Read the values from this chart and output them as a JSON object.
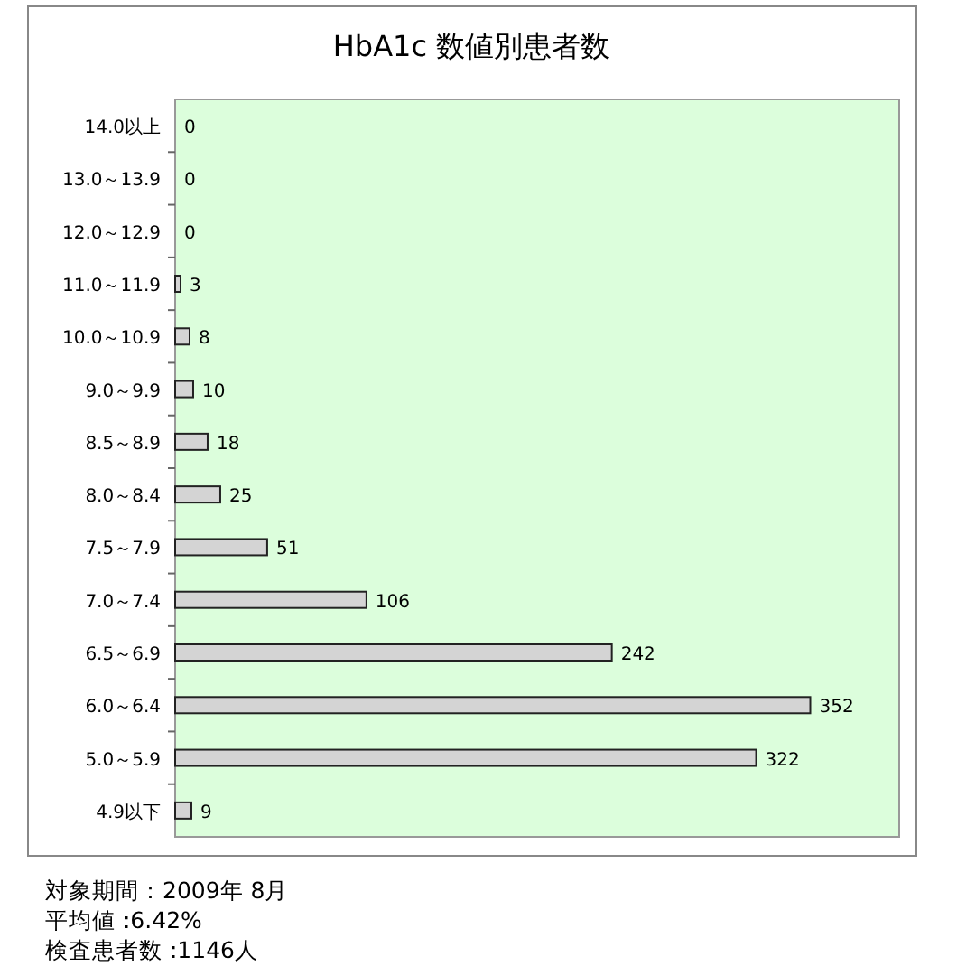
{
  "chart_data": {
    "type": "bar",
    "orientation": "horizontal",
    "title": "HbA1c 数値別患者数",
    "categories": [
      "14.0以上",
      "13.0～13.9",
      "12.0～12.9",
      "11.0～11.9",
      "10.0～10.9",
      "9.0～9.9",
      "8.5～8.9",
      "8.0～8.4",
      "7.5～7.9",
      "7.0～7.4",
      "6.5～6.9",
      "6.0～6.4",
      "5.0～5.9",
      "4.9以下"
    ],
    "values": [
      0,
      0,
      0,
      3,
      8,
      10,
      18,
      25,
      51,
      106,
      242,
      352,
      322,
      9
    ],
    "color": "#d4d4d4",
    "data_labels": true,
    "annotations": [
      "対象期間：2009年 8月",
      "平均値 :6.42%",
      "検査患者数 :1146人"
    ]
  }
}
